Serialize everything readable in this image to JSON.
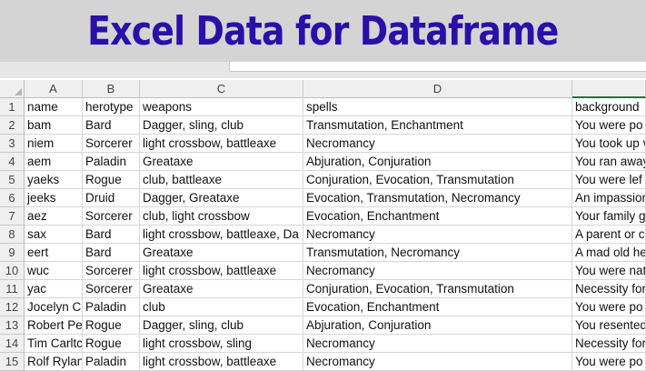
{
  "banner": {
    "title": "Excel Data for Dataframe"
  },
  "columns": [
    "A",
    "B",
    "C",
    "D",
    ""
  ],
  "rows": [
    {
      "num": "1",
      "cells": [
        "name",
        "herotype",
        "weapons",
        "spells",
        "background"
      ]
    },
    {
      "num": "2",
      "cells": [
        "bam",
        "Bard",
        "Dagger, sling, club",
        "Transmutation, Enchantment",
        "You were po"
      ]
    },
    {
      "num": "3",
      "cells": [
        "niem",
        "Sorcerer",
        "light crossbow, battleaxe",
        "Necromancy",
        "You took up v"
      ]
    },
    {
      "num": "4",
      "cells": [
        "aem",
        "Paladin",
        "Greataxe",
        "Abjuration, Conjuration",
        "You ran away"
      ]
    },
    {
      "num": "5",
      "cells": [
        "yaeks",
        "Rogue",
        "club, battleaxe",
        "Conjuration, Evocation, Transmutation",
        "You were lef"
      ]
    },
    {
      "num": "6",
      "cells": [
        "jeeks",
        "Druid",
        "Dagger, Greataxe",
        "Evocation, Transmutation, Necromancy",
        "An impassion"
      ]
    },
    {
      "num": "7",
      "cells": [
        "aez",
        "Sorcerer",
        "club, light crossbow",
        "Evocation, Enchantment",
        "Your family g"
      ]
    },
    {
      "num": "8",
      "cells": [
        "sax",
        "Bard",
        "light crossbow, battleaxe,  Da",
        "Necromancy",
        "A parent or c"
      ]
    },
    {
      "num": "9",
      "cells": [
        "eert",
        "Bard",
        "Greataxe",
        "Transmutation, Necromancy",
        "A mad old he"
      ]
    },
    {
      "num": "10",
      "cells": [
        "wuc",
        "Sorcerer",
        "light crossbow, battleaxe",
        "Necromancy",
        "You were nat"
      ]
    },
    {
      "num": "11",
      "cells": [
        "yac",
        "Sorcerer",
        "Greataxe",
        "Conjuration, Evocation, Transmutation",
        "Necessity for"
      ]
    },
    {
      "num": "12",
      "cells": [
        "Jocelyn Ch",
        "Paladin",
        "club",
        "Evocation, Enchantment",
        "You were po"
      ]
    },
    {
      "num": "13",
      "cells": [
        "Robert Pe",
        "Rogue",
        "Dagger, sling, club",
        "Abjuration, Conjuration",
        "You resented"
      ]
    },
    {
      "num": "14",
      "cells": [
        "Tim Carltc",
        "Rogue",
        "light crossbow, sling",
        "Necromancy",
        "Necessity for"
      ]
    },
    {
      "num": "15",
      "cells": [
        "Rolf Rylan",
        "Paladin",
        "light crossbow, battleaxe",
        "Necromancy",
        "You were po"
      ]
    }
  ]
}
